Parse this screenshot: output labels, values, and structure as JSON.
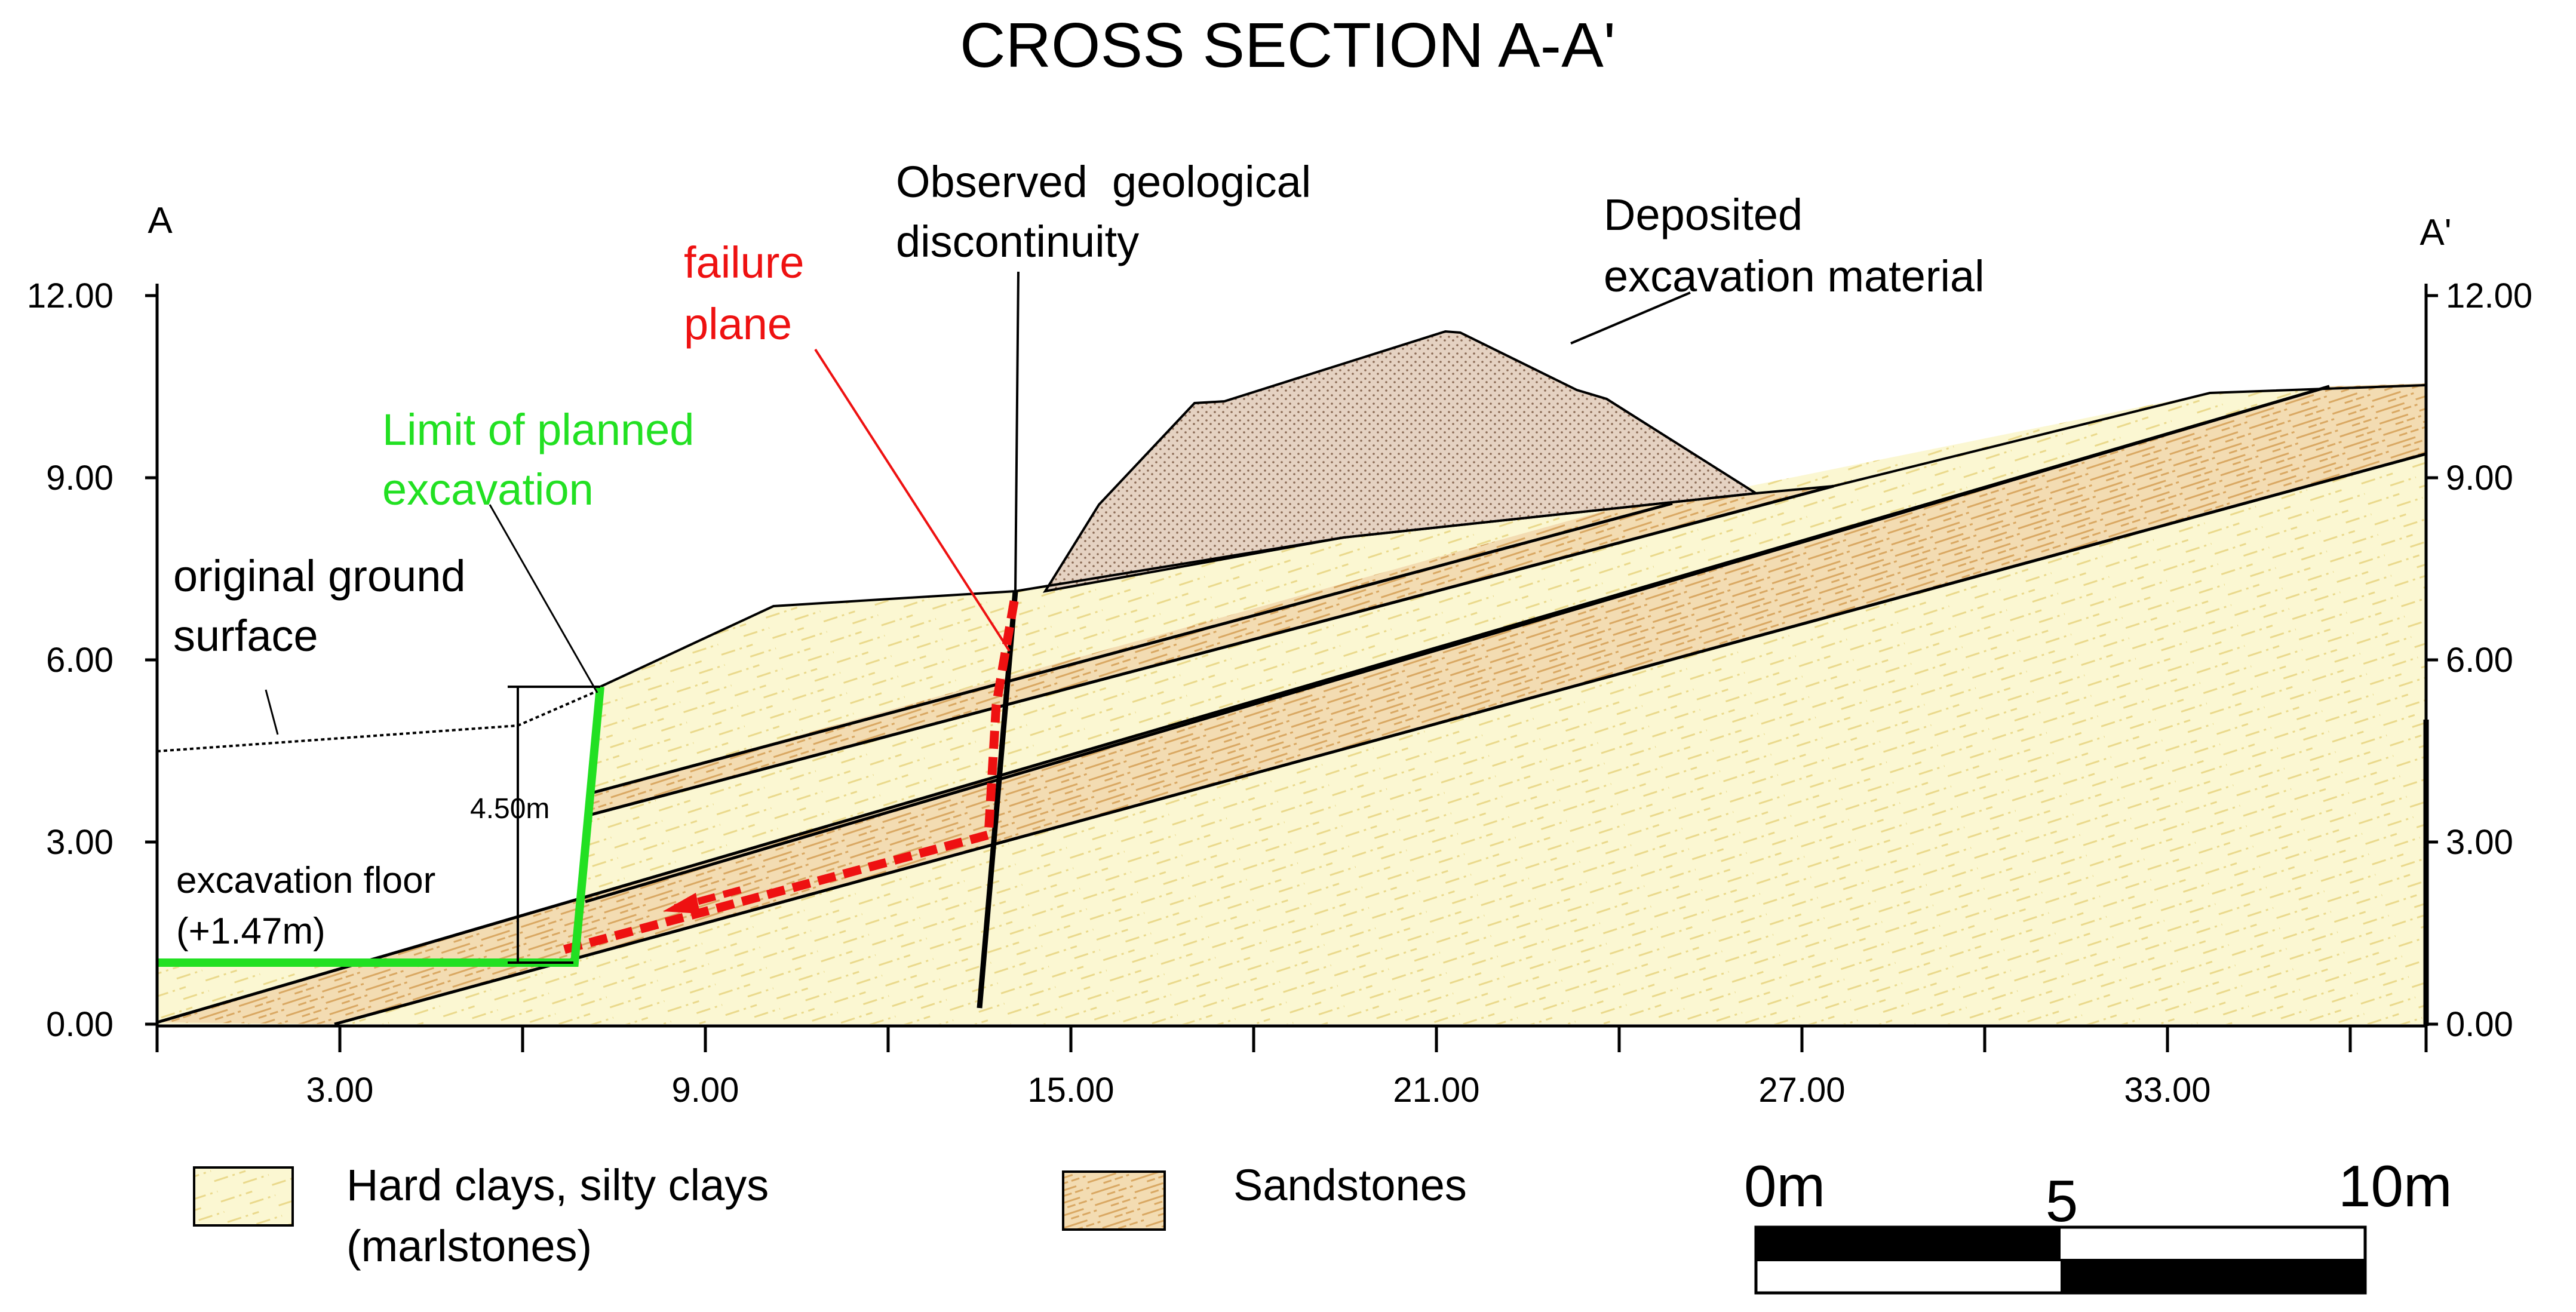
{
  "title": "CROSS SECTION A-A'",
  "section_ends": {
    "left": "A",
    "right": "A'"
  },
  "y_axis": {
    "ticks": [
      "12.00",
      "9.00",
      "6.00",
      "3.00",
      "0.00"
    ],
    "range_m": [
      0,
      12
    ]
  },
  "x_axis": {
    "labels": [
      "3.00",
      "9.00",
      "15.00",
      "21.00",
      "27.00",
      "33.00"
    ],
    "range_m": [
      0,
      37.2
    ]
  },
  "annotations": {
    "original_ground_1": "original ground",
    "original_ground_2": "surface",
    "planned_excavation_1": "Limit of planned",
    "planned_excavation_2": "excavation",
    "failure_plane_1": "failure",
    "failure_plane_2": "plane",
    "discontinuity_1": "Observed  geological",
    "discontinuity_2": "discontinuity",
    "deposited_1": "Deposited",
    "deposited_2": "excavation material",
    "excavation_floor_1": "excavation floor",
    "excavation_floor_2": "(+1.47m)",
    "depth_dimension": "4.50m"
  },
  "legend": {
    "clays_1": "Hard clays, silty clays",
    "clays_2": "(marlstones)",
    "sandstones": "Sandstones"
  },
  "scale_bar": {
    "start": "0m",
    "mid": "5",
    "end": "10m"
  },
  "colors": {
    "clay_fill": "#fbf7d2",
    "sandstone_fill": "#f3dcb2",
    "deposit_fill": "#e5d2c2",
    "excavation_limit": "#22e022",
    "failure_plane": "#ee1111",
    "line": "#000000"
  }
}
